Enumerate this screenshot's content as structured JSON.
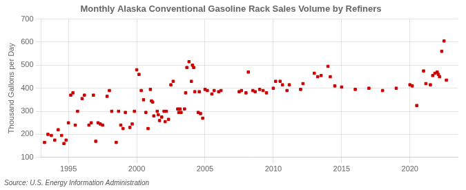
{
  "chart_data": {
    "type": "scatter",
    "title": "Monthly Alaska Conventional Gasoline Rack Sales Volume by Refiners",
    "y_label": "Thousand Gallons per Day",
    "annotations": [
      "Source: U.S. Energy Information Administration"
    ],
    "color": "#cc0000",
    "marker": "square",
    "grid": true,
    "xlim": [
      1993.0,
      2023.5
    ],
    "xticks": [
      1995,
      2000,
      2005,
      2010,
      2015,
      2020
    ],
    "ylim": [
      100,
      700
    ],
    "yticks": [
      100,
      200,
      300,
      400,
      500,
      600,
      700
    ],
    "x": [
      1993.25,
      1993.5,
      1993.75,
      1994.0,
      1994.25,
      1994.5,
      1994.67,
      1994.83,
      1995.0,
      1995.17,
      1995.33,
      1995.5,
      1995.67,
      1996.0,
      1996.17,
      1996.5,
      1996.67,
      1996.83,
      1997.0,
      1997.17,
      1997.33,
      1997.5,
      1997.83,
      1998.0,
      1998.17,
      1998.5,
      1998.67,
      1998.83,
      1999.0,
      1999.17,
      1999.5,
      1999.67,
      1999.83,
      2000.0,
      2000.17,
      2000.33,
      2000.5,
      2000.67,
      2000.83,
      2001.0,
      2001.08,
      2001.17,
      2001.25,
      2001.5,
      2001.58,
      2001.67,
      2001.83,
      2002.0,
      2002.08,
      2002.17,
      2002.33,
      2002.5,
      2002.67,
      2003.0,
      2003.08,
      2003.17,
      2003.25,
      2003.5,
      2003.58,
      2003.67,
      2003.83,
      2004.0,
      2004.08,
      2004.17,
      2004.25,
      2004.5,
      2004.58,
      2004.67,
      2004.83,
      2005.0,
      2005.17,
      2005.5,
      2005.67,
      2006.0,
      2006.17,
      2007.5,
      2007.67,
      2008.0,
      2008.17,
      2008.5,
      2008.67,
      2009.0,
      2009.25,
      2009.5,
      2010.0,
      2010.17,
      2010.5,
      2010.67,
      2011.0,
      2011.17,
      2012.0,
      2012.17,
      2013.0,
      2013.25,
      2013.5,
      2014.0,
      2014.17,
      2014.5,
      2015.0,
      2016.0,
      2017.0,
      2018.0,
      2019.0,
      2020.0,
      2020.17,
      2020.5,
      2021.0,
      2021.17,
      2021.5,
      2021.67,
      2021.83,
      2022.0,
      2022.08,
      2022.17,
      2022.33,
      2022.5,
      2022.67
    ],
    "values": [
      165,
      200,
      195,
      175,
      220,
      195,
      160,
      175,
      250,
      370,
      380,
      240,
      300,
      355,
      370,
      240,
      250,
      370,
      170,
      250,
      245,
      240,
      365,
      390,
      300,
      165,
      300,
      240,
      225,
      295,
      230,
      245,
      300,
      480,
      460,
      390,
      350,
      295,
      225,
      395,
      345,
      340,
      280,
      300,
      285,
      260,
      275,
      300,
      255,
      300,
      265,
      415,
      430,
      310,
      295,
      310,
      295,
      310,
      380,
      490,
      515,
      430,
      500,
      490,
      385,
      295,
      385,
      290,
      270,
      395,
      390,
      375,
      390,
      385,
      390,
      385,
      390,
      380,
      470,
      390,
      385,
      395,
      390,
      380,
      400,
      430,
      430,
      415,
      390,
      415,
      395,
      420,
      465,
      450,
      455,
      495,
      450,
      410,
      405,
      395,
      400,
      390,
      400,
      415,
      410,
      325,
      475,
      420,
      415,
      455,
      465,
      470,
      460,
      450,
      560,
      605,
      435
    ]
  }
}
